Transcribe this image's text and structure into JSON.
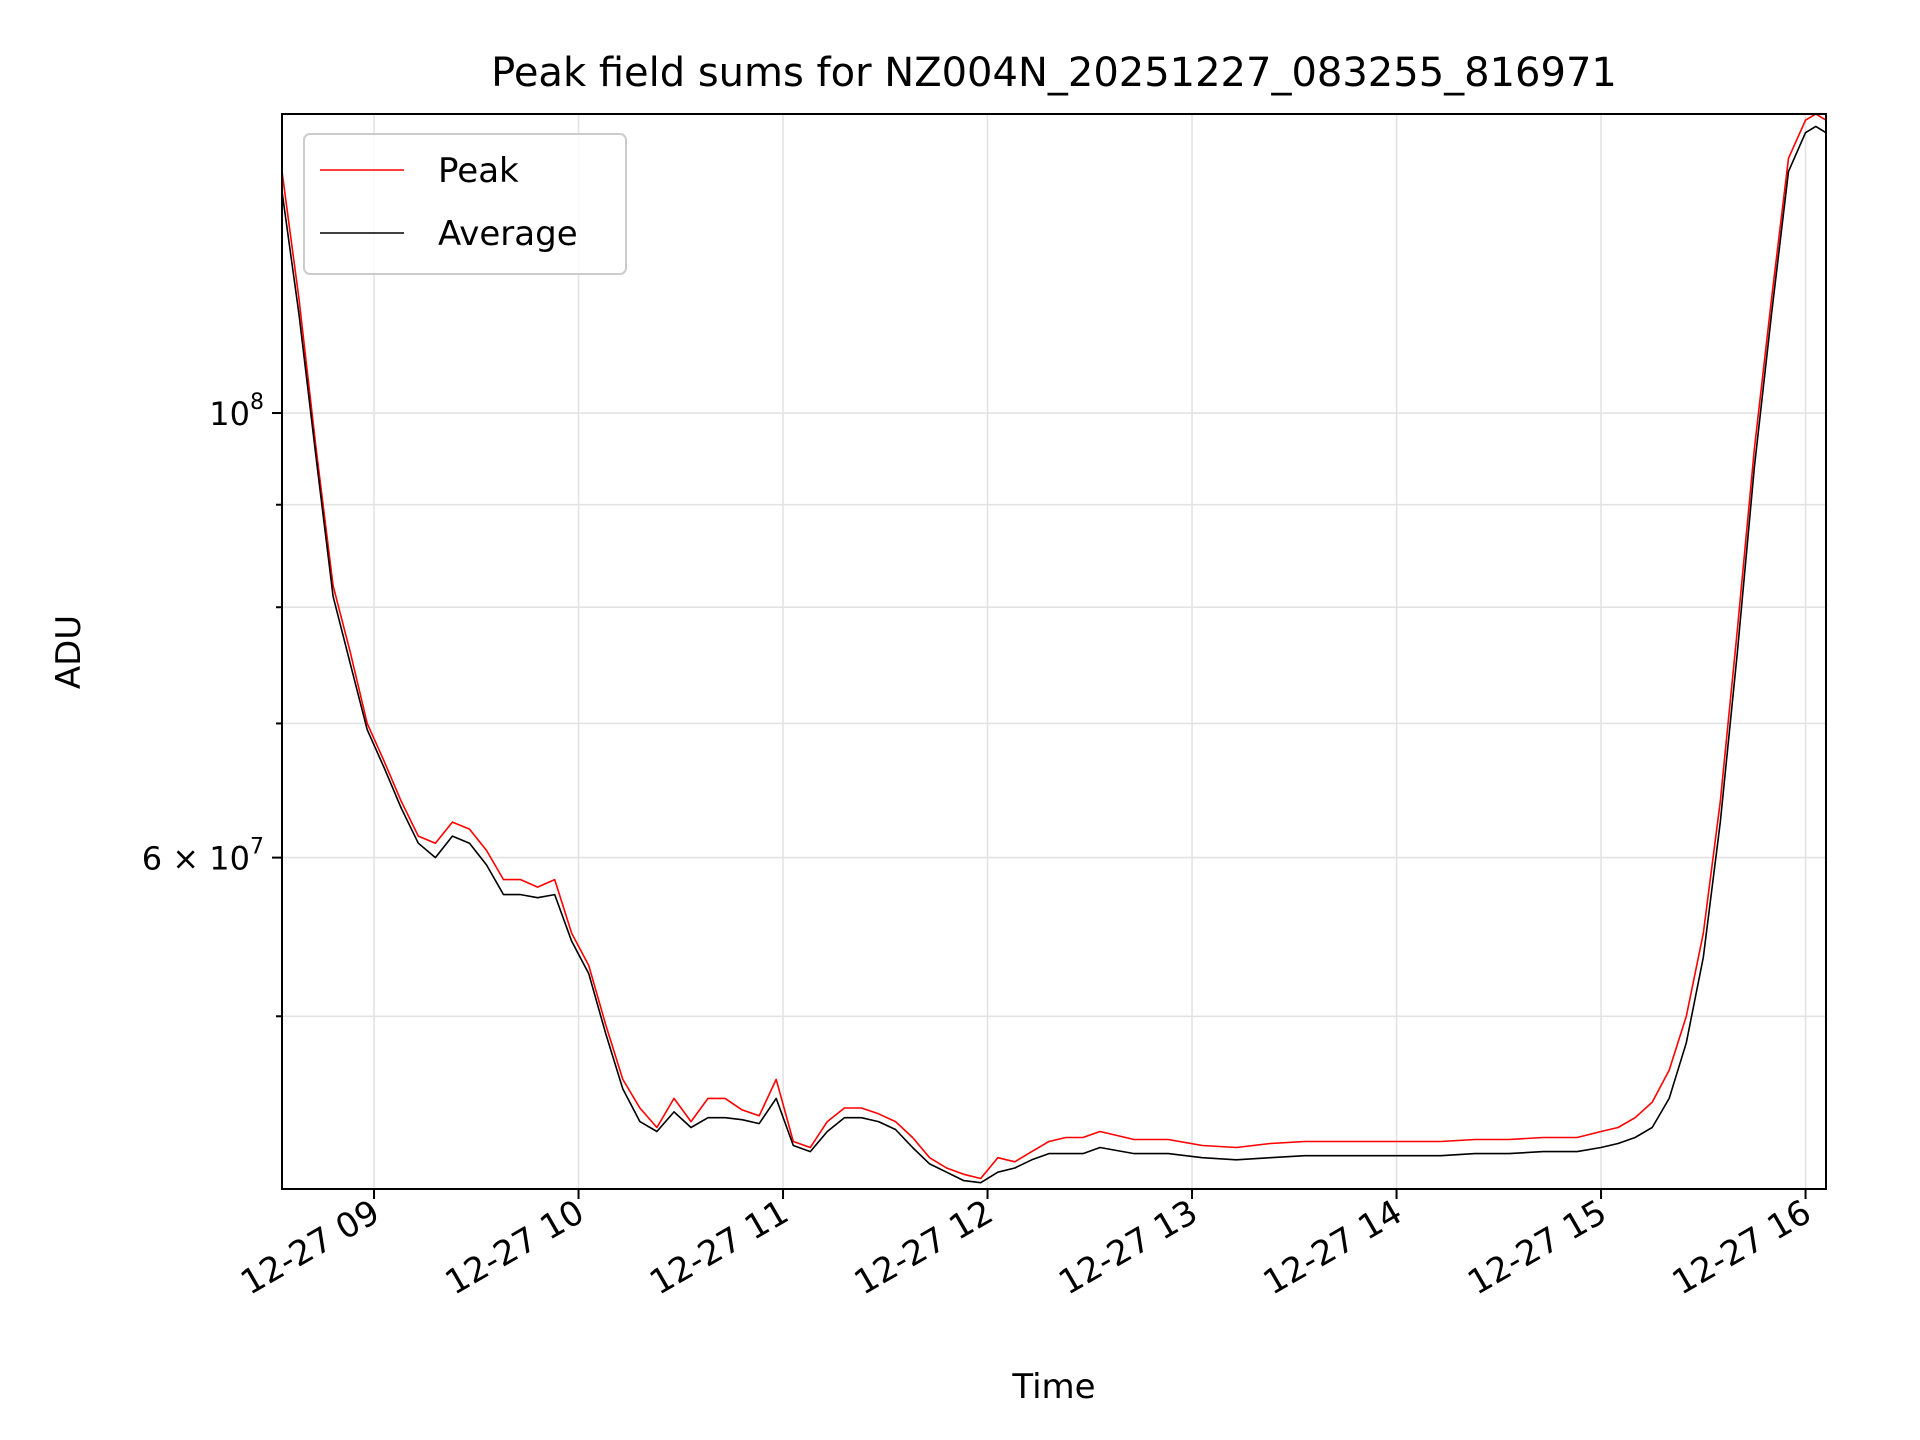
{
  "chart_data": {
    "type": "line",
    "title": "Peak field sums for NZ004N_20251227_083255_816971",
    "xlabel": "Time",
    "ylabel": "ADU",
    "y_scale": "log",
    "grid": true,
    "legend_position": "top-left",
    "xlim": [
      "2025-12-27 08:33",
      "2025-12-27 16:06"
    ],
    "ylim": [
      41000000,
      141000000
    ],
    "x_ticks": [
      {
        "value": "2025-12-27 09:00",
        "label": "12-27 09"
      },
      {
        "value": "2025-12-27 10:00",
        "label": "12-27 10"
      },
      {
        "value": "2025-12-27 11:00",
        "label": "12-27 11"
      },
      {
        "value": "2025-12-27 12:00",
        "label": "12-27 12"
      },
      {
        "value": "2025-12-27 13:00",
        "label": "12-27 13"
      },
      {
        "value": "2025-12-27 14:00",
        "label": "12-27 14"
      },
      {
        "value": "2025-12-27 15:00",
        "label": "12-27 15"
      },
      {
        "value": "2025-12-27 16:00",
        "label": "12-27 16"
      }
    ],
    "y_major_ticks": [
      {
        "value": 100000000,
        "label_base": "10",
        "label_exp": "8",
        "label_mantissa": ""
      },
      {
        "value": 60000000,
        "label_base": "10",
        "label_exp": "7",
        "label_mantissa": "6 × "
      }
    ],
    "y_minor_ticks": [
      50000000,
      70000000,
      80000000,
      90000000
    ],
    "series": [
      {
        "name": "Peak",
        "color": "#ff0000",
        "x": [
          "2025-12-27 08:33",
          "2025-12-27 08:38",
          "2025-12-27 08:43",
          "2025-12-27 08:48",
          "2025-12-27 08:53",
          "2025-12-27 08:58",
          "2025-12-27 09:03",
          "2025-12-27 09:08",
          "2025-12-27 09:13",
          "2025-12-27 09:18",
          "2025-12-27 09:23",
          "2025-12-27 09:28",
          "2025-12-27 09:33",
          "2025-12-27 09:38",
          "2025-12-27 09:43",
          "2025-12-27 09:48",
          "2025-12-27 09:53",
          "2025-12-27 09:58",
          "2025-12-27 10:03",
          "2025-12-27 10:08",
          "2025-12-27 10:13",
          "2025-12-27 10:18",
          "2025-12-27 10:23",
          "2025-12-27 10:28",
          "2025-12-27 10:33",
          "2025-12-27 10:38",
          "2025-12-27 10:43",
          "2025-12-27 10:48",
          "2025-12-27 10:53",
          "2025-12-27 10:58",
          "2025-12-27 11:03",
          "2025-12-27 11:08",
          "2025-12-27 11:13",
          "2025-12-27 11:18",
          "2025-12-27 11:23",
          "2025-12-27 11:28",
          "2025-12-27 11:33",
          "2025-12-27 11:38",
          "2025-12-27 11:43",
          "2025-12-27 11:48",
          "2025-12-27 11:53",
          "2025-12-27 11:58",
          "2025-12-27 12:03",
          "2025-12-27 12:08",
          "2025-12-27 12:13",
          "2025-12-27 12:18",
          "2025-12-27 12:23",
          "2025-12-27 12:28",
          "2025-12-27 12:33",
          "2025-12-27 12:43",
          "2025-12-27 12:53",
          "2025-12-27 13:03",
          "2025-12-27 13:13",
          "2025-12-27 13:23",
          "2025-12-27 13:33",
          "2025-12-27 13:43",
          "2025-12-27 13:53",
          "2025-12-27 14:03",
          "2025-12-27 14:13",
          "2025-12-27 14:23",
          "2025-12-27 14:33",
          "2025-12-27 14:43",
          "2025-12-27 14:53",
          "2025-12-27 15:00",
          "2025-12-27 15:05",
          "2025-12-27 15:10",
          "2025-12-27 15:15",
          "2025-12-27 15:20",
          "2025-12-27 15:25",
          "2025-12-27 15:30",
          "2025-12-27 15:35",
          "2025-12-27 15:40",
          "2025-12-27 15:45",
          "2025-12-27 15:50",
          "2025-12-27 15:55",
          "2025-12-27 16:00",
          "2025-12-27 16:03",
          "2025-12-27 16:06"
        ],
        "values": [
          132000000,
          114000000,
          96000000,
          82000000,
          76000000,
          70000000,
          67000000,
          64000000,
          61500000,
          61000000,
          62500000,
          62000000,
          60500000,
          58500000,
          58500000,
          58000000,
          58500000,
          55000000,
          53000000,
          49500000,
          46500000,
          45000000,
          44000000,
          45500000,
          44300000,
          45500000,
          45500000,
          44900000,
          44600000,
          46500000,
          43300000,
          43000000,
          44300000,
          45000000,
          45000000,
          44700000,
          44300000,
          43500000,
          42500000,
          42000000,
          41700000,
          41500000,
          42500000,
          42300000,
          42800000,
          43300000,
          43500000,
          43500000,
          43800000,
          43400000,
          43400000,
          43100000,
          43000000,
          43200000,
          43300000,
          43300000,
          43300000,
          43300000,
          43300000,
          43400000,
          43400000,
          43500000,
          43500000,
          43800000,
          44000000,
          44500000,
          45300000,
          47000000,
          50000000,
          55000000,
          64000000,
          78000000,
          96000000,
          114000000,
          134000000,
          140000000,
          141000000,
          140000000
        ]
      },
      {
        "name": "Average",
        "color": "#000000",
        "x": [
          "2025-12-27 08:33",
          "2025-12-27 08:38",
          "2025-12-27 08:43",
          "2025-12-27 08:48",
          "2025-12-27 08:53",
          "2025-12-27 08:58",
          "2025-12-27 09:03",
          "2025-12-27 09:08",
          "2025-12-27 09:13",
          "2025-12-27 09:18",
          "2025-12-27 09:23",
          "2025-12-27 09:28",
          "2025-12-27 09:33",
          "2025-12-27 09:38",
          "2025-12-27 09:43",
          "2025-12-27 09:48",
          "2025-12-27 09:53",
          "2025-12-27 09:58",
          "2025-12-27 10:03",
          "2025-12-27 10:08",
          "2025-12-27 10:13",
          "2025-12-27 10:18",
          "2025-12-27 10:23",
          "2025-12-27 10:28",
          "2025-12-27 10:33",
          "2025-12-27 10:38",
          "2025-12-27 10:43",
          "2025-12-27 10:48",
          "2025-12-27 10:53",
          "2025-12-27 10:58",
          "2025-12-27 11:03",
          "2025-12-27 11:08",
          "2025-12-27 11:13",
          "2025-12-27 11:18",
          "2025-12-27 11:23",
          "2025-12-27 11:28",
          "2025-12-27 11:33",
          "2025-12-27 11:38",
          "2025-12-27 11:43",
          "2025-12-27 11:48",
          "2025-12-27 11:53",
          "2025-12-27 11:58",
          "2025-12-27 12:03",
          "2025-12-27 12:08",
          "2025-12-27 12:13",
          "2025-12-27 12:18",
          "2025-12-27 12:23",
          "2025-12-27 12:28",
          "2025-12-27 12:33",
          "2025-12-27 12:43",
          "2025-12-27 12:53",
          "2025-12-27 13:03",
          "2025-12-27 13:13",
          "2025-12-27 13:23",
          "2025-12-27 13:33",
          "2025-12-27 13:43",
          "2025-12-27 13:53",
          "2025-12-27 14:03",
          "2025-12-27 14:13",
          "2025-12-27 14:23",
          "2025-12-27 14:33",
          "2025-12-27 14:43",
          "2025-12-27 14:53",
          "2025-12-27 15:00",
          "2025-12-27 15:05",
          "2025-12-27 15:10",
          "2025-12-27 15:15",
          "2025-12-27 15:20",
          "2025-12-27 15:25",
          "2025-12-27 15:30",
          "2025-12-27 15:35",
          "2025-12-27 15:40",
          "2025-12-27 15:45",
          "2025-12-27 15:50",
          "2025-12-27 15:55",
          "2025-12-27 16:00",
          "2025-12-27 16:03",
          "2025-12-27 16:06"
        ],
        "values": [
          129000000,
          112000000,
          95000000,
          81000000,
          75000000,
          69500000,
          66500000,
          63500000,
          61000000,
          60000000,
          61500000,
          61000000,
          59500000,
          57500000,
          57500000,
          57300000,
          57500000,
          54500000,
          52500000,
          49000000,
          46000000,
          44300000,
          43800000,
          44800000,
          44000000,
          44500000,
          44500000,
          44400000,
          44200000,
          45500000,
          43100000,
          42800000,
          43800000,
          44500000,
          44500000,
          44300000,
          43900000,
          43000000,
          42200000,
          41800000,
          41400000,
          41300000,
          41800000,
          42000000,
          42400000,
          42700000,
          42700000,
          42700000,
          43000000,
          42700000,
          42700000,
          42500000,
          42400000,
          42500000,
          42600000,
          42600000,
          42600000,
          42600000,
          42600000,
          42700000,
          42700000,
          42800000,
          42800000,
          43000000,
          43200000,
          43500000,
          44000000,
          45500000,
          48500000,
          53500000,
          62500000,
          76000000,
          94000000,
          112000000,
          132000000,
          138000000,
          139000000,
          138000000
        ]
      }
    ]
  }
}
